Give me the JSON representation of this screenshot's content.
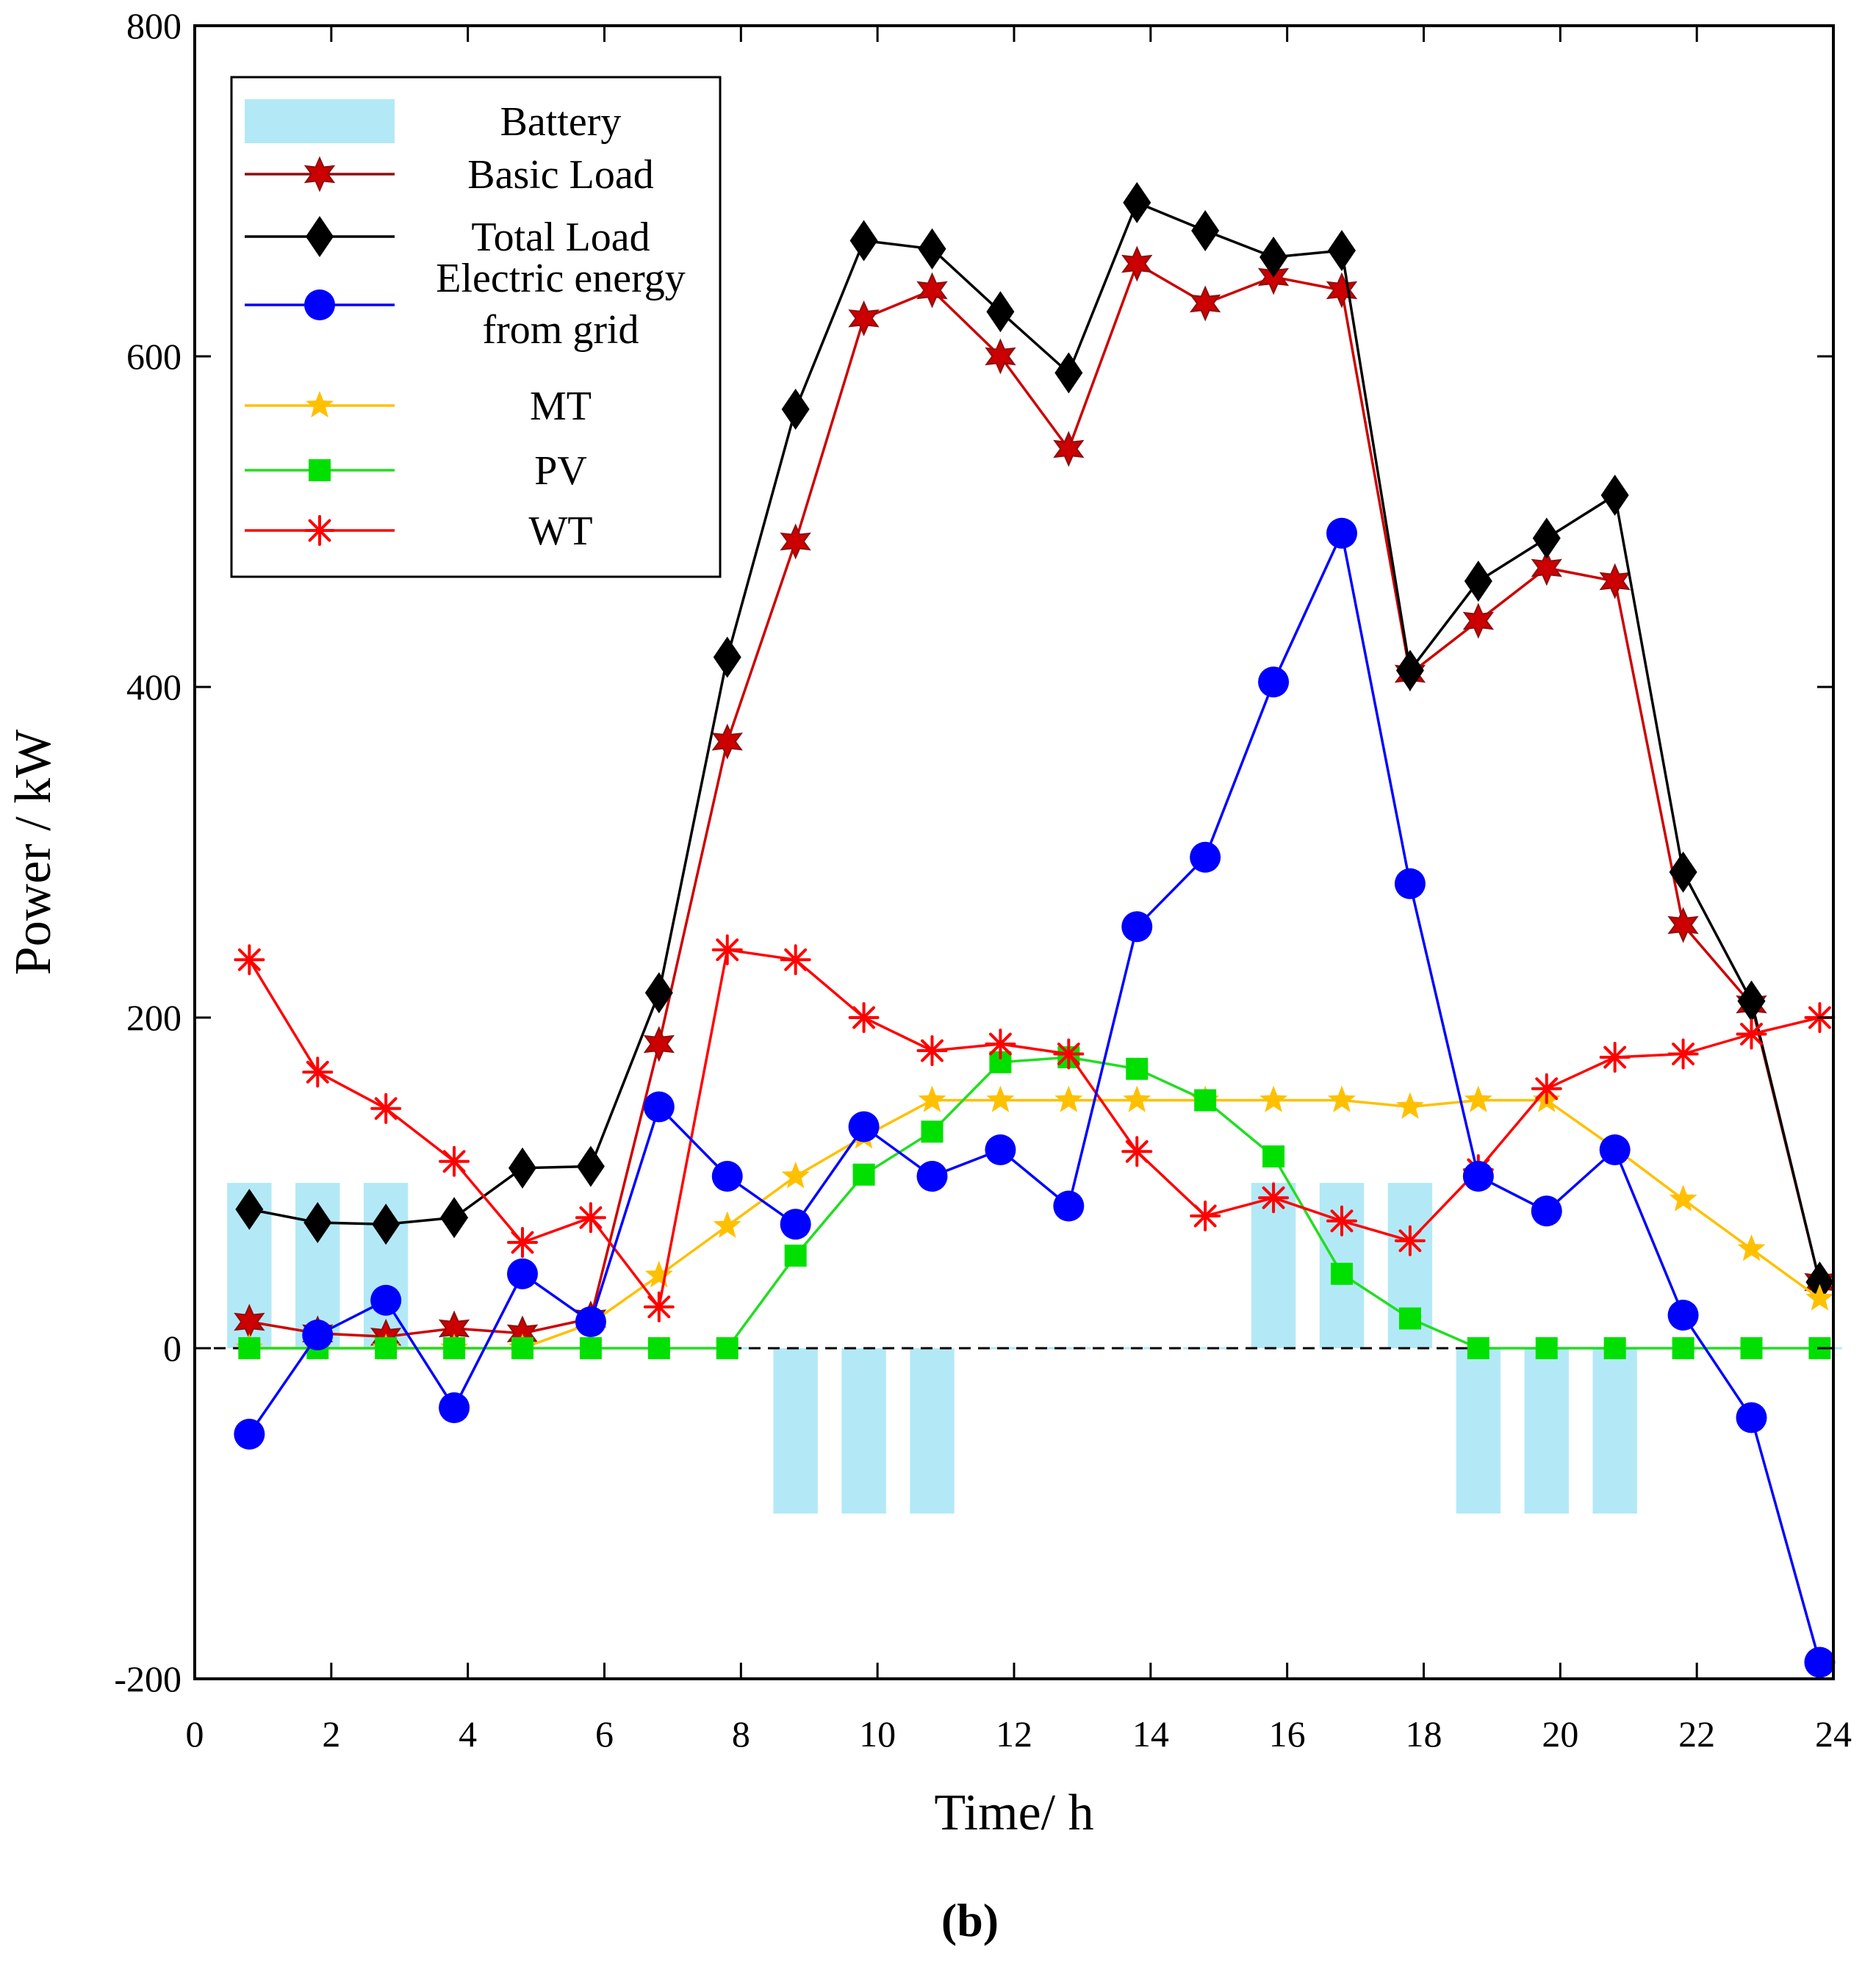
{
  "panel_label": {
    "open": "(",
    "letter": "b",
    "close": ")"
  },
  "colors": {
    "battery": "#b3e9f7",
    "basic_load": "#cc0000",
    "basic_load_line": "#8b1010",
    "total_load": "#000000",
    "grid": "#0000ff",
    "mt": "#ffc000",
    "pv": "#00e000",
    "pv_line": "#22dd22",
    "wt": "#ff0000"
  },
  "chart_data": {
    "type": "line",
    "xlabel": "Time/ h",
    "ylabel": "Power / kW",
    "xlim": [
      0,
      24
    ],
    "ylim": [
      -200,
      800
    ],
    "xticks": [
      0,
      2,
      4,
      6,
      8,
      10,
      12,
      14,
      16,
      18,
      20,
      22,
      24
    ],
    "yticks": [
      -200,
      0,
      200,
      400,
      600,
      800
    ],
    "x": [
      0.8,
      1.8,
      2.8,
      3.8,
      4.8,
      5.8,
      6.8,
      7.8,
      8.8,
      9.8,
      10.8,
      11.8,
      12.8,
      13.8,
      14.8,
      15.8,
      16.8,
      17.8,
      18.8,
      19.8,
      20.8,
      21.8,
      22.8,
      23.8
    ],
    "bars": {
      "name": "Battery",
      "values": [
        100,
        100,
        100,
        0,
        0,
        0,
        0,
        0,
        -100,
        -100,
        -100,
        0,
        0,
        0,
        0,
        100,
        100,
        100,
        -100,
        -100,
        -100,
        0,
        0,
        0
      ]
    },
    "series": [
      {
        "name": "Basic Load",
        "marker": "hexstar",
        "values": [
          16,
          9,
          7,
          12,
          9,
          18,
          184,
          367,
          488,
          623,
          640,
          600,
          544,
          656,
          632,
          648,
          640,
          408,
          440,
          472,
          464,
          256,
          208,
          40
        ]
      },
      {
        "name": "Total Load",
        "marker": "diamond",
        "values": [
          84,
          76,
          75,
          79,
          109,
          110,
          215,
          418,
          568,
          670,
          665,
          627,
          590,
          693,
          676,
          660,
          664,
          410,
          464,
          490,
          516,
          288,
          210,
          40
        ]
      },
      {
        "name": "Electric energy from grid",
        "marker": "circle",
        "values": [
          -52,
          8,
          29,
          -36,
          45,
          16,
          146,
          104,
          75,
          134,
          104,
          120,
          86,
          255,
          297,
          403,
          493,
          281,
          104,
          83,
          120,
          20,
          -42,
          -190
        ]
      },
      {
        "name": "MT",
        "marker": "star5",
        "values": [
          0,
          0,
          0,
          0,
          0,
          15,
          44,
          74,
          104,
          128,
          150,
          150,
          150,
          150,
          150,
          150,
          150,
          146,
          150,
          150,
          121,
          90,
          60,
          30
        ]
      },
      {
        "name": "PV",
        "marker": "square",
        "values": [
          0,
          0,
          0,
          0,
          0,
          0,
          0,
          0,
          56,
          105,
          131,
          173,
          176,
          169,
          150,
          116,
          45,
          18,
          0,
          0,
          0,
          0,
          0,
          0
        ]
      },
      {
        "name": "WT",
        "marker": "asterisk",
        "values": [
          235,
          167,
          145,
          113,
          64,
          79,
          25,
          241,
          235,
          200,
          180,
          184,
          178,
          119,
          80,
          91,
          77,
          65,
          108,
          157,
          176,
          178,
          190,
          200
        ]
      }
    ],
    "legend": {
      "placement": "top-left",
      "entries": [
        {
          "line1": "Battery",
          "line2": ""
        },
        {
          "line1": "Basic Load",
          "line2": ""
        },
        {
          "line1": "Total Load",
          "line2": ""
        },
        {
          "line1": "Electric energy",
          "line2": "from grid"
        },
        {
          "line1": "MT",
          "line2": ""
        },
        {
          "line1": "PV",
          "line2": ""
        },
        {
          "line1": "WT",
          "line2": ""
        }
      ]
    }
  }
}
